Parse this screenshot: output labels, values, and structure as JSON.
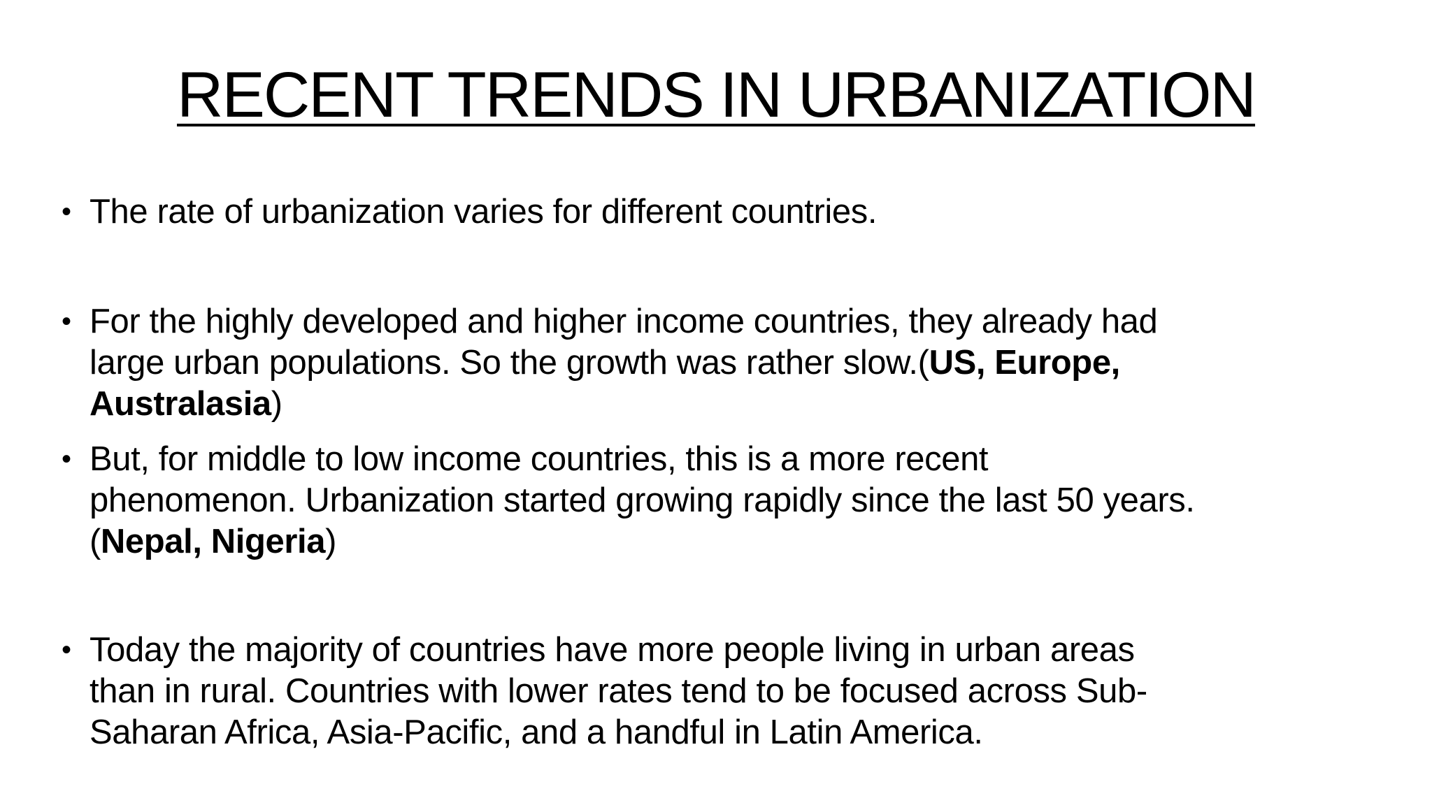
{
  "slide": {
    "title": "RECENT TRENDS IN URBANIZATION",
    "bullets": [
      {
        "lines": [
          "The rate of urbanization varies for different countries."
        ]
      },
      {
        "line1": "For the highly developed and higher income countries, they already had",
        "line2_text": "large urban populations. So the growth was rather slow.(",
        "line2_bold": "US, Europe,",
        "line3_bold": "Australasia",
        "line3_text": ")"
      },
      {
        "line1": "But, for middle to low income countries, this is a more recent",
        "line2": "phenomenon. Urbanization started growing rapidly since the last 50 years.",
        "line3_open": "(",
        "line3_bold": "Nepal, Nigeria",
        "line3_close": ")"
      },
      {
        "lines": [
          "Today the majority of countries have more people living in urban areas",
          "than in rural. Countries with lower rates tend to be focused across Sub-",
          "Saharan Africa, Asia-Pacific, and a handful in Latin America."
        ]
      }
    ],
    "bullet_glyph": "•"
  }
}
